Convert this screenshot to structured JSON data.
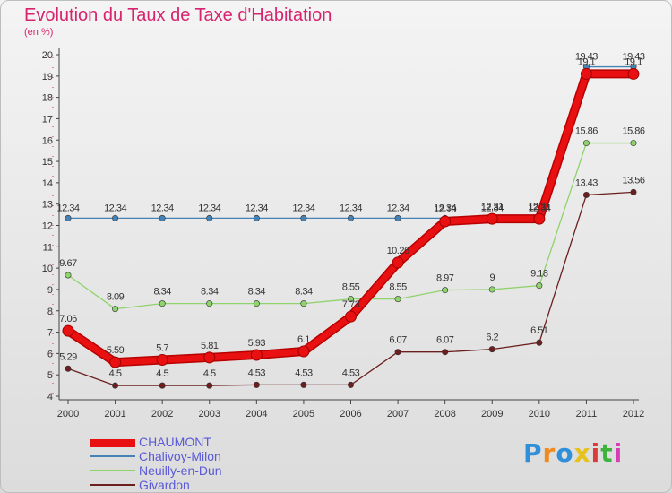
{
  "title": "Evolution du Taux de Taxe d'Habitation",
  "unit_label": "(en %)",
  "logo_text": "Proxiti",
  "logo_colors": [
    "#2f8fd8",
    "#f08a1c",
    "#2f8fd8",
    "#e8c21c",
    "#d83c3c",
    "#3cb43c",
    "#d83cb4"
  ],
  "chart_data": {
    "type": "line",
    "title": "Evolution du Taux de Taxe d'Habitation",
    "ylabel": "(en %)",
    "xlabel": "",
    "x": [
      "2000",
      "2001",
      "2002",
      "2003",
      "2004",
      "2005",
      "2006",
      "2007",
      "2008",
      "2009",
      "2010",
      "2011",
      "2012"
    ],
    "ylim": [
      4,
      20
    ],
    "yticks": [
      "4",
      "5",
      "6",
      "7",
      "8",
      "9",
      "10",
      "11",
      "12",
      "13",
      "14",
      "15",
      "16",
      "17",
      "18",
      "19",
      "20"
    ],
    "grid": false,
    "legend_position": "bottom-left",
    "series": [
      {
        "name": "CHAUMONT",
        "color": "#e81010",
        "values": [
          7.06,
          5.59,
          5.7,
          5.81,
          5.93,
          6.1,
          7.73,
          10.26,
          12.19,
          12.31,
          12.31,
          19.1,
          19.1
        ],
        "labels": [
          "7.06",
          "5.59",
          "5.7",
          "5.81",
          "5.93",
          "6.1",
          "7.73",
          "10.26",
          "12.19",
          "12.31",
          "12.31",
          "19.1",
          "19.1"
        ]
      },
      {
        "name": "Chalivoy-Milon",
        "color": "#4682b4",
        "values": [
          12.34,
          12.34,
          12.34,
          12.34,
          12.34,
          12.34,
          12.34,
          12.34,
          12.34,
          12.34,
          12.34,
          19.43,
          19.43
        ],
        "labels": [
          "12.34",
          "12.34",
          "12.34",
          "12.34",
          "12.34",
          "12.34",
          "12.34",
          "12.34",
          "12.34",
          "12.34",
          "12.34",
          "19.43",
          "19.43"
        ]
      },
      {
        "name": "Neuilly-en-Dun",
        "color": "#8ed36b",
        "values": [
          9.67,
          8.09,
          8.34,
          8.34,
          8.34,
          8.34,
          8.55,
          8.55,
          8.97,
          9.0,
          9.18,
          15.86,
          15.86
        ],
        "labels": [
          "9.67",
          "8.09",
          "8.34",
          "8.34",
          "8.34",
          "8.34",
          "8.55",
          "8.55",
          "8.97",
          "9",
          "9.18",
          "15.86",
          "15.86"
        ]
      },
      {
        "name": "Givardon",
        "color": "#6b1f1f",
        "values": [
          5.29,
          4.5,
          4.5,
          4.5,
          4.53,
          4.53,
          4.53,
          6.07,
          6.07,
          6.2,
          6.51,
          13.43,
          13.56
        ],
        "labels": [
          "5.29",
          "4.5",
          "4.5",
          "4.5",
          "4.53",
          "4.53",
          "4.53",
          "6.07",
          "6.07",
          "6.2",
          "6.51",
          "13.43",
          "13.56"
        ]
      }
    ]
  }
}
